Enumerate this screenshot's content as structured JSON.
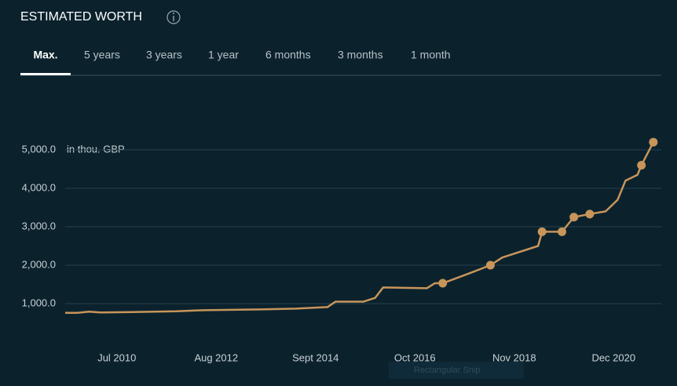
{
  "header": {
    "title": "ESTIMATED WORTH",
    "tabs": [
      "Max.",
      "5 years",
      "3 years",
      "1 year",
      "6 months",
      "3 months",
      "1 month"
    ],
    "active_tab": 0
  },
  "overlay": "Rectangular Snip",
  "chart_data": {
    "type": "line",
    "y_unit_label": "in thou. GBP",
    "x": [
      "2009-06",
      "2009-09",
      "2009-12",
      "2010-03",
      "2010-11",
      "2011-10",
      "2012-05",
      "2013-07",
      "2014-04",
      "2014-12",
      "2015-02",
      "2015-09",
      "2015-12",
      "2016-02",
      "2017-01",
      "2017-03",
      "2017-05",
      "2017-12",
      "2018-05",
      "2018-08",
      "2019-05",
      "2019-06",
      "2019-11",
      "2020-02",
      "2020-06",
      "2020-10",
      "2021-01",
      "2021-03",
      "2021-06",
      "2021-07",
      "2021-10"
    ],
    "values": [
      760,
      760,
      790,
      770,
      780,
      800,
      830,
      850,
      870,
      910,
      1050,
      1050,
      1150,
      1420,
      1400,
      1530,
      1530,
      1800,
      2000,
      2200,
      2500,
      2870,
      2870,
      3250,
      3330,
      3400,
      3700,
      4200,
      4350,
      4600,
      5200
    ],
    "color": "#c8955a",
    "markers": {
      "x": [
        "2017-05",
        "2018-05",
        "2019-06",
        "2019-11",
        "2020-02",
        "2020-06",
        "2021-07",
        "2021-10"
      ],
      "values": [
        1530,
        2000,
        2870,
        2870,
        3250,
        3330,
        4600,
        5200
      ]
    },
    "xlim": [
      "2009-06",
      "2021-12"
    ],
    "xticks": [
      {
        "value": "2010-07",
        "label": "Jul 2010"
      },
      {
        "value": "2012-08",
        "label": "Aug 2012"
      },
      {
        "value": "2014-09",
        "label": "Sept 2014"
      },
      {
        "value": "2016-10",
        "label": "Oct 2016"
      },
      {
        "value": "2018-11",
        "label": "Nov 2018"
      },
      {
        "value": "2020-12",
        "label": "Dec 2020"
      }
    ],
    "ylim": [
      0,
      6000
    ],
    "yticks": [
      {
        "value": 1000,
        "label": "1,000.0"
      },
      {
        "value": 2000,
        "label": "2,000.0"
      },
      {
        "value": 3000,
        "label": "3,000.0"
      },
      {
        "value": 4000,
        "label": "4,000.0"
      },
      {
        "value": 5000,
        "label": "5,000.0"
      }
    ],
    "grid": true
  }
}
